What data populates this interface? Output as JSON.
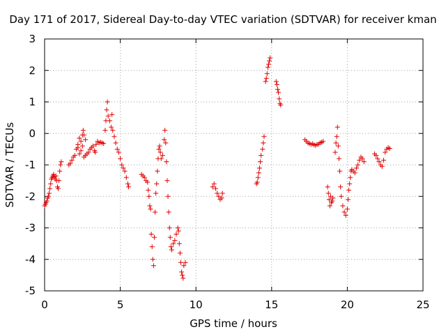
{
  "chart_data": {
    "type": "scatter",
    "title": "Day 171 of 2017, Sidereal Day-to-day VTEC variation (SDTVAR) for receiver kman",
    "xlabel": "GPS time / hours",
    "ylabel": "SDTVAR / TECUs",
    "xlim": [
      0,
      25
    ],
    "ylim": [
      -5,
      3
    ],
    "xticks": [
      0,
      5,
      10,
      15,
      20,
      25
    ],
    "yticks": [
      -5,
      -4,
      -3,
      -2,
      -1,
      0,
      1,
      2,
      3
    ],
    "grid": true,
    "marker": "plus",
    "color": "#e00000",
    "series": [
      {
        "name": "SDTVAR",
        "points": [
          [
            0.0,
            -2.3
          ],
          [
            0.05,
            -2.25
          ],
          [
            0.1,
            -2.2
          ],
          [
            0.15,
            -2.15
          ],
          [
            0.2,
            -2.05
          ],
          [
            0.25,
            -2.0
          ],
          [
            0.3,
            -1.9
          ],
          [
            0.35,
            -1.75
          ],
          [
            0.4,
            -1.6
          ],
          [
            0.45,
            -1.45
          ],
          [
            0.5,
            -1.4
          ],
          [
            0.55,
            -1.35
          ],
          [
            0.6,
            -1.3
          ],
          [
            0.65,
            -1.38
          ],
          [
            0.7,
            -1.45
          ],
          [
            0.75,
            -1.35
          ],
          [
            0.8,
            -1.5
          ],
          [
            0.85,
            -1.7
          ],
          [
            0.9,
            -1.75
          ],
          [
            0.95,
            -1.5
          ],
          [
            1.0,
            -1.2
          ],
          [
            1.05,
            -1.0
          ],
          [
            1.1,
            -0.9
          ],
          [
            1.6,
            -1.0
          ],
          [
            1.7,
            -0.95
          ],
          [
            1.8,
            -0.85
          ],
          [
            1.9,
            -0.75
          ],
          [
            2.0,
            -0.7
          ],
          [
            2.1,
            -0.5
          ],
          [
            2.2,
            -0.35
          ],
          [
            2.3,
            -0.15
          ],
          [
            2.4,
            -0.25
          ],
          [
            2.5,
            -0.05
          ],
          [
            2.55,
            0.1
          ],
          [
            2.6,
            -0.05
          ],
          [
            2.7,
            -0.2
          ],
          [
            2.2,
            -0.45
          ],
          [
            2.3,
            -0.65
          ],
          [
            2.4,
            -0.55
          ],
          [
            2.5,
            -0.4
          ],
          [
            2.6,
            -0.75
          ],
          [
            2.7,
            -0.7
          ],
          [
            2.8,
            -0.65
          ],
          [
            2.9,
            -0.6
          ],
          [
            3.0,
            -0.5
          ],
          [
            3.1,
            -0.45
          ],
          [
            3.2,
            -0.4
          ],
          [
            3.3,
            -0.55
          ],
          [
            3.35,
            -0.6
          ],
          [
            3.4,
            -0.35
          ],
          [
            3.5,
            -0.25
          ],
          [
            3.6,
            -0.3
          ],
          [
            3.7,
            -0.28
          ],
          [
            3.8,
            -0.3
          ],
          [
            3.9,
            -0.32
          ],
          [
            4.0,
            0.1
          ],
          [
            4.05,
            0.4
          ],
          [
            4.1,
            0.75
          ],
          [
            4.15,
            1.0
          ],
          [
            4.2,
            0.55
          ],
          [
            4.3,
            0.4
          ],
          [
            4.4,
            0.2
          ],
          [
            4.45,
            0.6
          ],
          [
            4.5,
            0.1
          ],
          [
            4.6,
            -0.1
          ],
          [
            4.7,
            -0.3
          ],
          [
            4.8,
            -0.5
          ],
          [
            4.9,
            -0.6
          ],
          [
            5.0,
            -0.8
          ],
          [
            5.1,
            -1.0
          ],
          [
            5.2,
            -1.1
          ],
          [
            5.3,
            -1.2
          ],
          [
            5.4,
            -1.4
          ],
          [
            5.5,
            -1.6
          ],
          [
            5.55,
            -1.7
          ],
          [
            6.4,
            -1.3
          ],
          [
            6.5,
            -1.35
          ],
          [
            6.6,
            -1.4
          ],
          [
            6.7,
            -1.5
          ],
          [
            6.8,
            -1.55
          ],
          [
            6.85,
            -1.8
          ],
          [
            6.9,
            -2.0
          ],
          [
            6.95,
            -2.3
          ],
          [
            7.0,
            -2.4
          ],
          [
            7.05,
            -3.2
          ],
          [
            7.1,
            -3.6
          ],
          [
            7.15,
            -4.0
          ],
          [
            7.2,
            -4.2
          ],
          [
            7.25,
            -3.3
          ],
          [
            7.3,
            -2.5
          ],
          [
            7.35,
            -1.9
          ],
          [
            7.4,
            -1.6
          ],
          [
            7.45,
            -1.2
          ],
          [
            7.5,
            -0.8
          ],
          [
            7.55,
            -0.5
          ],
          [
            7.6,
            -0.4
          ],
          [
            7.65,
            -0.6
          ],
          [
            7.7,
            -0.8
          ],
          [
            7.8,
            -0.7
          ],
          [
            7.9,
            -0.2
          ],
          [
            7.95,
            0.1
          ],
          [
            8.0,
            -0.3
          ],
          [
            8.05,
            -0.9
          ],
          [
            8.1,
            -1.5
          ],
          [
            8.15,
            -2.0
          ],
          [
            8.2,
            -2.5
          ],
          [
            8.25,
            -3.0
          ],
          [
            8.3,
            -3.3
          ],
          [
            8.35,
            -3.6
          ],
          [
            8.4,
            -3.7
          ],
          [
            8.5,
            -3.5
          ],
          [
            8.6,
            -3.4
          ],
          [
            8.7,
            -3.2
          ],
          [
            8.8,
            -3.0
          ],
          [
            8.85,
            -3.1
          ],
          [
            8.9,
            -3.5
          ],
          [
            8.95,
            -3.8
          ],
          [
            9.0,
            -4.1
          ],
          [
            9.05,
            -4.4
          ],
          [
            9.1,
            -4.5
          ],
          [
            9.15,
            -4.6
          ],
          [
            9.2,
            -4.2
          ],
          [
            9.3,
            -4.1
          ],
          [
            11.1,
            -1.7
          ],
          [
            11.2,
            -1.6
          ],
          [
            11.3,
            -1.75
          ],
          [
            11.4,
            -1.9
          ],
          [
            11.5,
            -2.0
          ],
          [
            11.6,
            -2.1
          ],
          [
            11.7,
            -2.05
          ],
          [
            11.75,
            -1.9
          ],
          [
            14.0,
            -1.6
          ],
          [
            14.05,
            -1.55
          ],
          [
            14.1,
            -1.4
          ],
          [
            14.15,
            -1.25
          ],
          [
            14.2,
            -1.1
          ],
          [
            14.25,
            -0.9
          ],
          [
            14.3,
            -0.7
          ],
          [
            14.4,
            -0.5
          ],
          [
            14.45,
            -0.3
          ],
          [
            14.5,
            -0.1
          ],
          [
            14.6,
            1.65
          ],
          [
            14.65,
            1.75
          ],
          [
            14.7,
            1.9
          ],
          [
            14.75,
            2.1
          ],
          [
            14.8,
            2.2
          ],
          [
            14.85,
            2.3
          ],
          [
            14.9,
            2.4
          ],
          [
            15.3,
            1.65
          ],
          [
            15.35,
            1.55
          ],
          [
            15.4,
            1.4
          ],
          [
            15.45,
            1.3
          ],
          [
            15.5,
            1.1
          ],
          [
            15.55,
            0.95
          ],
          [
            15.6,
            0.9
          ],
          [
            17.2,
            -0.2
          ],
          [
            17.3,
            -0.25
          ],
          [
            17.4,
            -0.3
          ],
          [
            17.5,
            -0.32
          ],
          [
            17.6,
            -0.35
          ],
          [
            17.7,
            -0.33
          ],
          [
            17.8,
            -0.36
          ],
          [
            17.9,
            -0.38
          ],
          [
            18.0,
            -0.35
          ],
          [
            18.1,
            -0.34
          ],
          [
            18.2,
            -0.3
          ],
          [
            18.3,
            -0.28
          ],
          [
            18.4,
            -0.25
          ],
          [
            18.7,
            -1.7
          ],
          [
            18.75,
            -1.9
          ],
          [
            18.8,
            -2.1
          ],
          [
            18.85,
            -2.3
          ],
          [
            18.9,
            -2.0
          ],
          [
            18.95,
            -2.2
          ],
          [
            19.0,
            -2.15
          ],
          [
            19.05,
            -2.05
          ],
          [
            19.2,
            -0.6
          ],
          [
            19.25,
            -0.3
          ],
          [
            19.3,
            -0.1
          ],
          [
            19.35,
            0.2
          ],
          [
            19.4,
            -0.4
          ],
          [
            19.45,
            -0.8
          ],
          [
            19.5,
            -1.2
          ],
          [
            19.55,
            -1.7
          ],
          [
            19.6,
            -2.0
          ],
          [
            19.7,
            -2.3
          ],
          [
            19.8,
            -2.5
          ],
          [
            19.9,
            -2.6
          ],
          [
            20.0,
            -2.4
          ],
          [
            20.05,
            -2.1
          ],
          [
            20.1,
            -1.8
          ],
          [
            20.15,
            -1.6
          ],
          [
            20.2,
            -1.4
          ],
          [
            20.25,
            -1.2
          ],
          [
            20.3,
            -1.15
          ],
          [
            20.4,
            -1.2
          ],
          [
            20.5,
            -1.25
          ],
          [
            20.6,
            -1.1
          ],
          [
            20.7,
            -1.0
          ],
          [
            20.8,
            -0.85
          ],
          [
            20.9,
            -0.75
          ],
          [
            21.0,
            -0.8
          ],
          [
            21.1,
            -0.9
          ],
          [
            21.8,
            -0.65
          ],
          [
            21.9,
            -0.7
          ],
          [
            22.0,
            -0.8
          ],
          [
            22.1,
            -0.9
          ],
          [
            22.2,
            -1.0
          ],
          [
            22.3,
            -1.05
          ],
          [
            22.4,
            -0.85
          ],
          [
            22.5,
            -0.6
          ],
          [
            22.6,
            -0.5
          ],
          [
            22.7,
            -0.45
          ],
          [
            22.8,
            -0.48
          ]
        ]
      }
    ]
  }
}
